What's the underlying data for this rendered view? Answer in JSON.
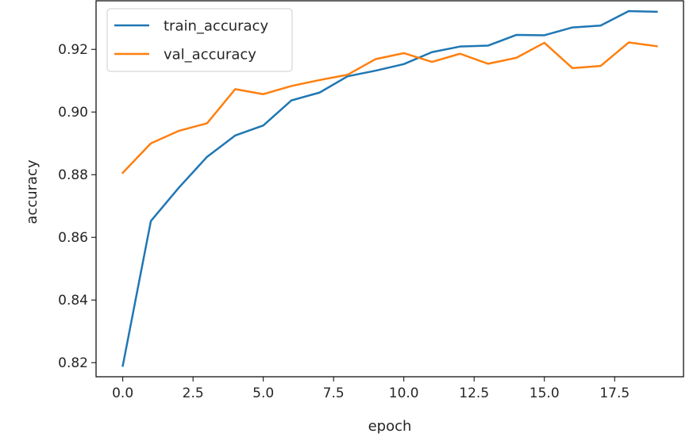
{
  "chart_data": {
    "type": "line",
    "xlabel": "epoch",
    "ylabel": "accuracy",
    "xlim": [
      -0.95,
      19.95
    ],
    "ylim": [
      0.8155,
      0.9355
    ],
    "xticks": [
      0.0,
      2.5,
      5.0,
      7.5,
      10.0,
      12.5,
      15.0,
      17.5
    ],
    "xtick_labels": [
      "0.0",
      "2.5",
      "5.0",
      "7.5",
      "10.0",
      "12.5",
      "15.0",
      "17.5"
    ],
    "yticks": [
      0.82,
      0.84,
      0.86,
      0.88,
      0.9,
      0.92
    ],
    "ytick_labels": [
      "0.82",
      "0.84",
      "0.86",
      "0.88",
      "0.90",
      "0.92"
    ],
    "grid": false,
    "legend_position": "top-left",
    "x": [
      0,
      1,
      2,
      3,
      4,
      5,
      6,
      7,
      8,
      9,
      10,
      11,
      12,
      13,
      14,
      15,
      16,
      17,
      18,
      19
    ],
    "series": [
      {
        "name": "train_accuracy",
        "color": "#1f77b4",
        "values": [
          0.819,
          0.8652,
          0.8759,
          0.8857,
          0.8925,
          0.8957,
          0.9037,
          0.9062,
          0.9114,
          0.9132,
          0.9153,
          0.9191,
          0.9209,
          0.9212,
          0.9246,
          0.9245,
          0.927,
          0.9276,
          0.9322,
          0.932
        ]
      },
      {
        "name": "val_accuracy",
        "color": "#ff7f0e",
        "values": [
          0.8806,
          0.89,
          0.894,
          0.8964,
          0.9073,
          0.9057,
          0.9083,
          0.9102,
          0.9119,
          0.9169,
          0.9188,
          0.916,
          0.9186,
          0.9154,
          0.9173,
          0.9221,
          0.914,
          0.9147,
          0.9222,
          0.921
        ]
      }
    ]
  }
}
